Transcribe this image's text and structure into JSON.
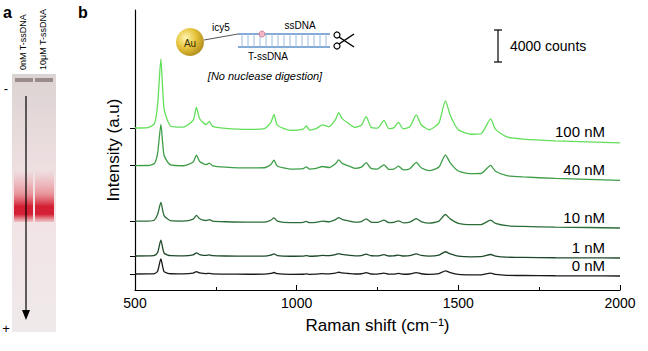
{
  "gel": {
    "panel_label": "a",
    "lanes": [
      "0nM T-ssDNA",
      "10μM T-ssDNA"
    ],
    "electrodes": [
      "-",
      "+"
    ]
  },
  "chart_data": {
    "type": "line",
    "panel_label": "b",
    "x_label": "Raman shift (cm⁻¹)",
    "y_label": "Intensity (a.u)",
    "inset": {
      "particle": "Au",
      "dye": "icy5",
      "strands": [
        "ssDNA",
        "T-ssDNA"
      ],
      "caption": "[No nuclease digestion]"
    },
    "scale_bar": {
      "value": 4000,
      "label": "4000 counts"
    },
    "xlim": [
      500,
      2000
    ],
    "xticks": [
      500,
      1000,
      1500,
      2000
    ],
    "ylim": [
      0,
      35000
    ],
    "yticks": [
      2000,
      4250,
      8600,
      15550,
      20250
    ],
    "tick_labels": "x",
    "grid": false,
    "x": [
      500,
      540,
      560,
      570,
      580,
      590,
      610,
      650,
      680,
      690,
      700,
      720,
      730,
      740,
      780,
      850,
      900,
      920,
      930,
      940,
      980,
      1020,
      1030,
      1040,
      1060,
      1080,
      1100,
      1120,
      1130,
      1140,
      1160,
      1180,
      1200,
      1215,
      1230,
      1250,
      1270,
      1285,
      1300,
      1315,
      1330,
      1350,
      1370,
      1385,
      1410,
      1440,
      1460,
      1475,
      1500,
      1540,
      1570,
      1600,
      1615,
      1650,
      1700,
      1800,
      1900,
      2000
    ],
    "series": [
      {
        "name": "100 nM",
        "color": "#62df5a",
        "values": [
          20250,
          20300,
          20780,
          23160,
          28900,
          22640,
          20510,
          20370,
          21230,
          22820,
          21400,
          20680,
          21070,
          20450,
          20210,
          20070,
          20160,
          20930,
          21920,
          20610,
          19960,
          20110,
          20500,
          19980,
          20160,
          20640,
          20410,
          21290,
          22170,
          21460,
          20840,
          20310,
          20590,
          21670,
          20350,
          20230,
          21200,
          20180,
          20260,
          20950,
          20130,
          20400,
          21880,
          20660,
          20030,
          20890,
          23670,
          21850,
          20020,
          19470,
          19530,
          21390,
          20080,
          19130,
          18870,
          18650,
          18520,
          18400
        ]
      },
      {
        "name": "40 nM",
        "color": "#3e9e48",
        "values": [
          15550,
          15560,
          15810,
          17110,
          20700,
          16810,
          15630,
          15530,
          15990,
          16860,
          16070,
          15660,
          15870,
          15530,
          15370,
          15260,
          15280,
          15690,
          16230,
          15500,
          15120,
          15180,
          15390,
          15100,
          15190,
          15440,
          15310,
          15780,
          16260,
          15860,
          15510,
          15210,
          15350,
          15930,
          15200,
          15120,
          15650,
          15080,
          15110,
          15480,
          15020,
          15160,
          15960,
          15280,
          14920,
          15380,
          16900,
          15890,
          14870,
          14540,
          14560,
          15570,
          14840,
          14300,
          14130,
          13950,
          13820,
          13700
        ]
      },
      {
        "name": "10 nM",
        "color": "#2c6e39",
        "values": [
          8600,
          8610,
          8750,
          9460,
          10960,
          9300,
          8660,
          8610,
          8860,
          9330,
          8910,
          8690,
          8800,
          8610,
          8530,
          8480,
          8490,
          8720,
          9020,
          8620,
          8420,
          8460,
          8570,
          8410,
          8460,
          8600,
          8530,
          8790,
          9050,
          8840,
          8650,
          8490,
          8560,
          8890,
          8490,
          8450,
          8730,
          8430,
          8450,
          8650,
          8400,
          8480,
          8920,
          8550,
          8350,
          8610,
          9440,
          8890,
          8330,
          8160,
          8170,
          8730,
          8330,
          8040,
          7950,
          7860,
          7810,
          7750
        ]
      },
      {
        "name": "1 nM",
        "color": "#1f4a2a",
        "values": [
          4250,
          4260,
          4330,
          4690,
          6240,
          4610,
          4290,
          4270,
          4400,
          4640,
          4430,
          4320,
          4380,
          4290,
          4250,
          4230,
          4240,
          4360,
          4510,
          4310,
          4220,
          4240,
          4300,
          4220,
          4250,
          4320,
          4290,
          4420,
          4550,
          4440,
          4350,
          4270,
          4310,
          4480,
          4280,
          4260,
          4410,
          4250,
          4270,
          4370,
          4250,
          4290,
          4510,
          4330,
          4230,
          4360,
          4780,
          4510,
          4230,
          4150,
          4160,
          4440,
          4240,
          4100,
          4070,
          4030,
          4020,
          4000
        ]
      },
      {
        "name": "0 nM",
        "color": "#1a1a1a",
        "values": [
          2000,
          2010,
          2060,
          2350,
          3890,
          2290,
          2030,
          2010,
          2110,
          2300,
          2140,
          2050,
          2090,
          2020,
          1990,
          1970,
          1980,
          2070,
          2190,
          2040,
          1960,
          1970,
          2020,
          1960,
          1980,
          2040,
          2010,
          2110,
          2220,
          2130,
          2060,
          2000,
          2030,
          2160,
          2000,
          1980,
          2100,
          1980,
          1990,
          2070,
          1970,
          2000,
          2180,
          2030,
          1960,
          2060,
          2390,
          2170,
          1950,
          1890,
          1890,
          2120,
          1960,
          1840,
          1810,
          1780,
          1770,
          1750
        ]
      }
    ]
  }
}
